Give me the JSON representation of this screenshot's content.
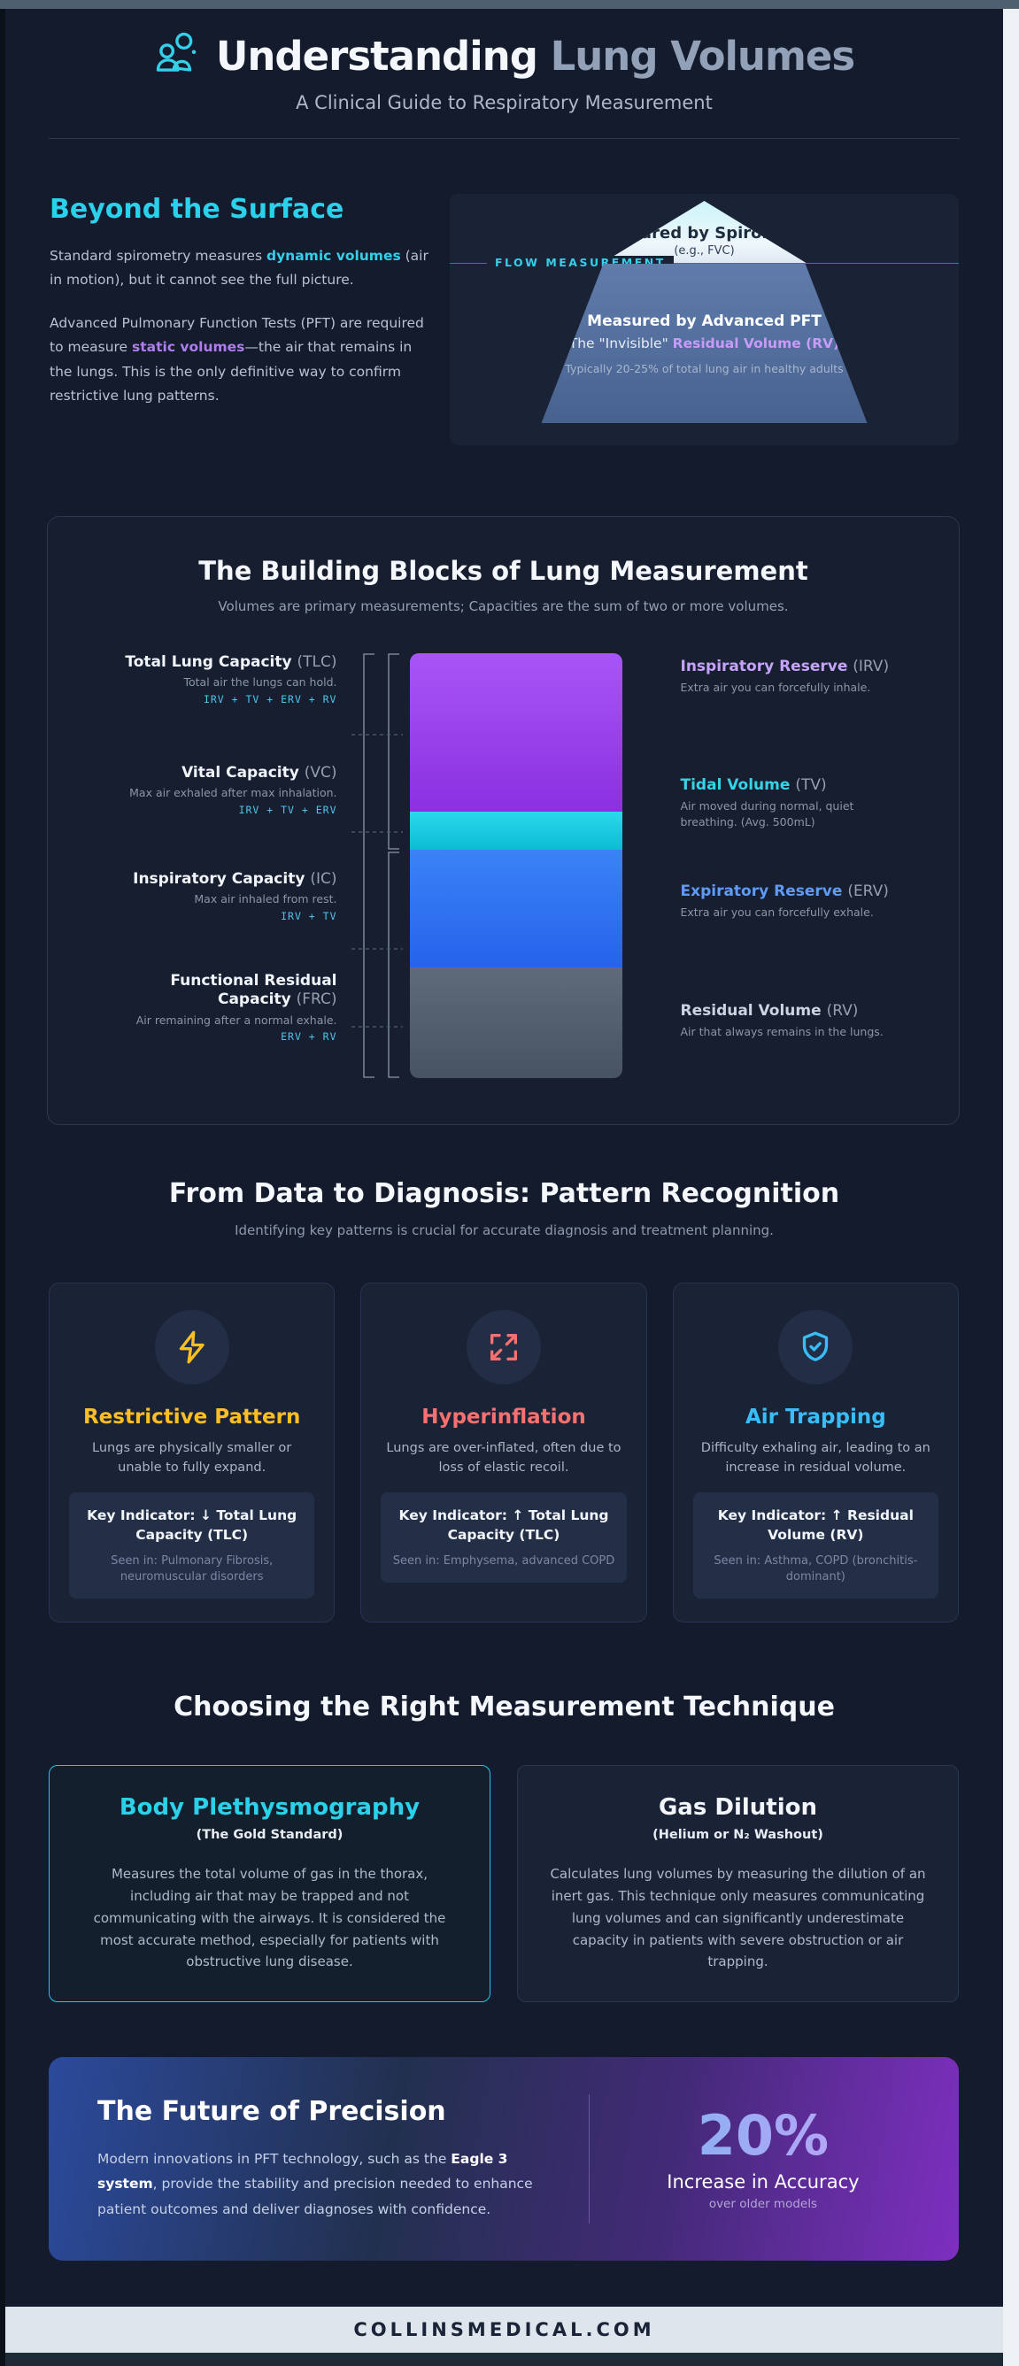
{
  "header": {
    "title_strong": "Understanding",
    "title_light": " Lung Volumes",
    "subtitle": "A Clinical Guide to Respiratory Measurement"
  },
  "intro": {
    "heading": "Beyond the Surface",
    "p1_pre": "Standard spirometry measures ",
    "p1_em": "dynamic volumes",
    "p1_post": " (air in motion), but it cannot see the full picture.",
    "p2_pre": "Advanced Pulmonary Function Tests (PFT) are required to measure ",
    "p2_em": "static volumes",
    "p2_post": "—the air that remains in the lungs. This is the only definitive way to confirm restrictive lung patterns."
  },
  "iceberg": {
    "flow_label": "FLOW MEASUREMENT",
    "top_title": "Measured by Spirometry",
    "top_sub": "(e.g., FVC)",
    "bottom_title": "Measured by Advanced PFT",
    "bottom_line_pre": "The \"Invisible\" ",
    "bottom_line_em": "Residual Volume (RV)",
    "bottom_note": "Typically 20-25% of total lung air in healthy adults"
  },
  "blocks": {
    "title": "The Building Blocks of Lung Measurement",
    "subtitle": "Volumes are primary measurements; Capacities are the sum of two or more volumes.",
    "capacities": [
      {
        "name": "Total Lung Capacity",
        "abbr": "(TLC)",
        "desc": "Total air the lungs can hold.",
        "formula": "IRV + TV + ERV + RV"
      },
      {
        "name": "Vital Capacity",
        "abbr": "(VC)",
        "desc": "Max air exhaled after max inhalation.",
        "formula": "IRV + TV + ERV"
      },
      {
        "name": "Inspiratory Capacity",
        "abbr": "(IC)",
        "desc": "Max air inhaled from rest.",
        "formula": "IRV + TV"
      },
      {
        "name": "Functional Residual Capacity",
        "abbr": "(FRC)",
        "desc": "Air remaining after a normal exhale.",
        "formula": "ERV + RV"
      }
    ],
    "volumes": [
      {
        "name": "Inspiratory Reserve",
        "abbr": "(IRV)",
        "desc": "Extra air you can forcefully inhale.",
        "bar_color_top": "#a855f7",
        "bar_color_bottom": "#8b30e0",
        "label_color": "#c4a3f9",
        "height_pct": 37.3
      },
      {
        "name": "Tidal Volume",
        "abbr": "(TV)",
        "desc": "Air moved during normal, quiet breathing. (Avg. 500mL)",
        "bar_color_top": "#2bd9ec",
        "bar_color_bottom": "#0cbcd4",
        "label_color": "#36d3e8",
        "height_pct": 9.0
      },
      {
        "name": "Expiratory Reserve",
        "abbr": "(ERV)",
        "desc": "Extra air you can forcefully exhale.",
        "bar_color_top": "#3b82f6",
        "bar_color_bottom": "#2563eb",
        "label_color": "#5e9bf7",
        "height_pct": 27.6
      },
      {
        "name": "Residual Volume",
        "abbr": "(RV)",
        "desc": "Air that always remains in the lungs.",
        "bar_color_top": "#5e6b7b",
        "bar_color_bottom": "#475362",
        "label_color": "#cbd5e1",
        "height_pct": 26.1
      }
    ]
  },
  "patterns": {
    "title": "From Data to Diagnosis: Pattern Recognition",
    "subtitle": "Identifying key patterns is crucial for accurate diagnosis and treatment planning.",
    "cards": [
      {
        "icon": "lightning-icon",
        "color": "#fbbf24",
        "title": "Restrictive Pattern",
        "desc": "Lungs are physically smaller or unable to fully expand.",
        "indicator": "Key Indicator: ↓ Total Lung Capacity (TLC)",
        "seen": "Seen in: Pulmonary Fibrosis, neuromuscular disorders"
      },
      {
        "icon": "expand-arrows-icon",
        "color": "#f87171",
        "title": "Hyperinflation",
        "desc": "Lungs are over-inflated, often due to loss of elastic recoil.",
        "indicator": "Key Indicator: ↑ Total Lung Capacity (TLC)",
        "seen": "Seen in: Emphysema, advanced COPD"
      },
      {
        "icon": "shield-check-icon",
        "color": "#38bdf8",
        "title": "Air Trapping",
        "desc": "Difficulty exhaling air, leading to an increase in residual volume.",
        "indicator": "Key Indicator: ↑ Residual Volume (RV)",
        "seen": "Seen in: Asthma, COPD (bronchitis-dominant)"
      }
    ]
  },
  "techniques": {
    "title": "Choosing the Right Measurement Technique",
    "cards": [
      {
        "title": "Body Plethysmography",
        "subtitle": "(The Gold Standard)",
        "body": "Measures the total volume of gas in the thorax, including air that may be trapped and not communicating with the airways. It is considered the most accurate method, especially for patients with obstructive lung disease.",
        "accent": "#2cc4e0"
      },
      {
        "title": "Gas Dilution",
        "subtitle": "(Helium or N₂ Washout)",
        "body": "Calculates lung volumes by measuring the dilution of an inert gas. This technique only measures communicating lung volumes and can significantly underestimate capacity in patients with severe obstruction or air trapping."
      }
    ]
  },
  "future": {
    "title": "The Future of Precision",
    "body_pre": "Modern innovations in PFT technology, such as the ",
    "body_em": "Eagle 3 system",
    "body_post": ", provide the stability and precision needed to enhance patient outcomes and deliver diagnoses with confidence.",
    "stat_value": "20%",
    "stat_label": "Increase in Accuracy",
    "stat_sub": "over older models"
  },
  "footer": {
    "site": "COLLINSMEDICAL.COM"
  },
  "theme": {
    "page_bg": "#131b2d",
    "card_bg": "#1a2336",
    "accent_cyan": "#2bd1ea",
    "accent_purple": "#b07df0",
    "banner_blue": "#2b4a9b",
    "banner_purple": "#7e2fc0",
    "footer_bg": "#dfe5ec"
  }
}
